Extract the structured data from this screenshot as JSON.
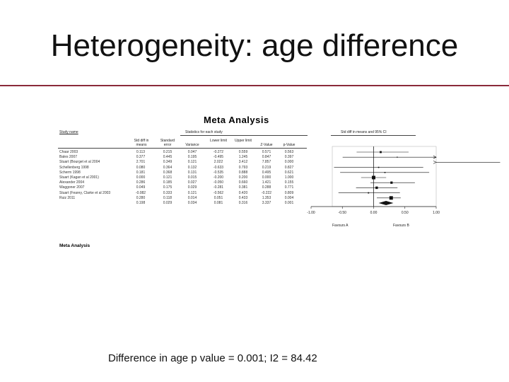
{
  "slide": {
    "title": "Heterogeneity: age difference",
    "caption": "Difference in age p value = 0.001; I2 = 84.42"
  },
  "figure": {
    "title": "Meta Analysis",
    "bottom_title": "Meta Analysis",
    "headers": {
      "study": "Study name",
      "stats_group": "Statistics for each study",
      "plot_group": "Std diff in means and 95% CI",
      "std_diff": "Std diff in means",
      "std_err": "Standard error",
      "variance": "Variance",
      "lower": "Lower limit",
      "upper": "Upper limit",
      "z": "Z-Value",
      "p": "p-Value"
    },
    "favours_a": "Favours A",
    "favours_b": "Favours B"
  },
  "chart_data": {
    "type": "forest",
    "x_ticks": [
      "-1.00",
      "-0.50",
      "0.00",
      "0.50",
      "1.00"
    ],
    "xlim": [
      -1,
      1
    ],
    "studies": [
      {
        "name": "Chaar 2003",
        "std_diff": "0.113",
        "se": "0.215",
        "var": "0.047",
        "lo": "-0.272",
        "hi": "0.559",
        "z": "0.571",
        "p": "0.563",
        "est": 0.113,
        "ci": [
          -0.272,
          0.559
        ],
        "arrow_right": false
      },
      {
        "name": "Bales 2007",
        "std_diff": "0.377",
        "se": "0.445",
        "var": "0.195",
        "lo": "-0.495",
        "hi": "1.245",
        "z": "0.847",
        "p": "0.397",
        "est": 0.377,
        "ci": [
          -0.495,
          1.245
        ],
        "arrow_right": true
      },
      {
        "name": "Stuart (Bourget et al 2004",
        "std_diff": "2.701",
        "se": "0.349",
        "var": "0.121",
        "lo": "2.022",
        "hi": "3.412",
        "z": "7.857",
        "p": "0.000",
        "est": 2.701,
        "ci": [
          2.022,
          3.412
        ],
        "arrow_right": true
      },
      {
        "name": "Schellenberg 1998",
        "std_diff": "0.080",
        "se": "0.364",
        "var": "0.132",
        "lo": "-0.633",
        "hi": "0.793",
        "z": "0.219",
        "p": "0.827",
        "est": 0.08,
        "ci": [
          -0.633,
          0.793
        ],
        "arrow_right": false
      },
      {
        "name": "Scherm 1998",
        "std_diff": "0.181",
        "se": "0.368",
        "var": "0.131",
        "lo": "-0.535",
        "hi": "0.888",
        "z": "0.495",
        "p": "0.621",
        "est": 0.181,
        "ci": [
          -0.535,
          0.888
        ],
        "arrow_right": false
      },
      {
        "name": "Stuart (Kagan et al 2001)",
        "std_diff": "0.000",
        "se": "0.121",
        "var": "0.015",
        "lo": "-0.200",
        "hi": "0.200",
        "z": "0.000",
        "p": "1.000",
        "est": 0.0,
        "ci": [
          -0.2,
          0.2
        ],
        "arrow_right": false
      },
      {
        "name": "Alexander 2004",
        "std_diff": "0.286",
        "se": "0.185",
        "var": "0.027",
        "lo": "-0.050",
        "hi": "0.660",
        "z": "1.421",
        "p": "0.155",
        "est": 0.286,
        "ci": [
          -0.05,
          0.66
        ],
        "arrow_right": false
      },
      {
        "name": "Waggoner 2007",
        "std_diff": "0.049",
        "se": "0.175",
        "var": "0.029",
        "lo": "-0.281",
        "hi": "0.381",
        "z": "0.288",
        "p": "0.771",
        "est": 0.049,
        "ci": [
          -0.281,
          0.381
        ],
        "arrow_right": false
      },
      {
        "name": "Stuart (Fearey, Clarke et al 2003",
        "std_diff": "-0.082",
        "se": "0.333",
        "var": "0.121",
        "lo": "-0.562",
        "hi": "0.420",
        "z": "-0.222",
        "p": "0.809",
        "est": -0.082,
        "ci": [
          -0.562,
          0.42
        ],
        "arrow_right": false
      },
      {
        "name": "Ruiz 2011",
        "std_diff": "0.280",
        "se": "0.118",
        "var": "0.014",
        "lo": "0.051",
        "hi": "0.433",
        "z": "1.353",
        "p": "0.004",
        "est": 0.28,
        "ci": [
          0.051,
          0.433
        ],
        "arrow_right": false
      }
    ],
    "summary": {
      "std_diff": "0.198",
      "se": "0.029",
      "var": "0.034",
      "lo": "0.081",
      "hi": "0.316",
      "z": "3.337",
      "p": "0.001",
      "est": 0.198,
      "ci": [
        0.081,
        0.316
      ]
    },
    "colors": {
      "rule": "#8b2a3a",
      "ink": "#111111"
    }
  }
}
